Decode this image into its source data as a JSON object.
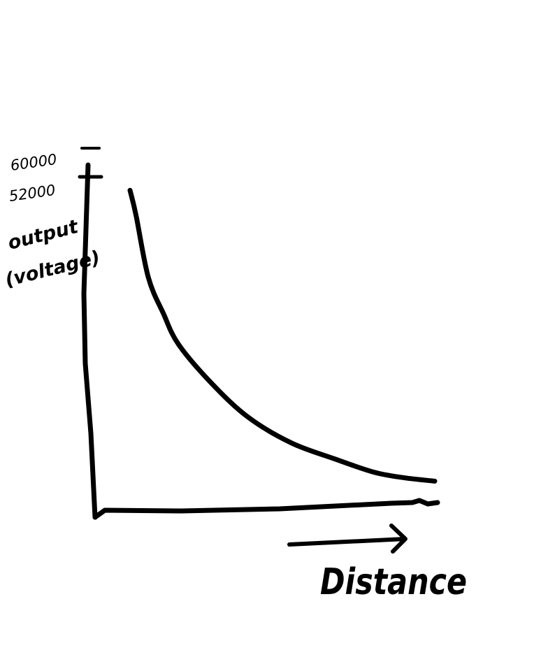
{
  "chart_data": {
    "type": "line",
    "title": "",
    "xlabel": "Distance",
    "ylabel_lines": [
      "output",
      "(voltage)"
    ],
    "y_ticks": [
      {
        "label": "60000",
        "value": 60000
      },
      {
        "label": "52000",
        "value": 52000
      }
    ],
    "ylim": [
      0,
      60000
    ],
    "xlim": [
      0,
      100
    ],
    "grid": false,
    "series": [
      {
        "x": [
          0,
          2,
          6,
          11,
          16,
          27,
          39,
          53,
          67,
          80,
          90,
          100
        ],
        "y": [
          52000,
          47500,
          36500,
          30000,
          24500,
          17500,
          11500,
          7000,
          4200,
          1800,
          800,
          200
        ]
      }
    ],
    "colors": {
      "ink": "#000000",
      "background": "#ffffff"
    }
  }
}
